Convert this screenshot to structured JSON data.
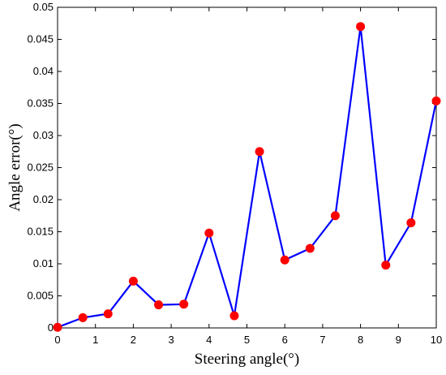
{
  "chart_data": {
    "type": "line",
    "xlabel": "Steering angle(°)",
    "ylabel": "Angle error(°)",
    "xlim": [
      0,
      10
    ],
    "ylim": [
      0,
      0.05
    ],
    "xticks": [
      "0",
      "1",
      "2",
      "3",
      "4",
      "5",
      "6",
      "7",
      "8",
      "9",
      "10"
    ],
    "yticks": [
      "0",
      "0.005",
      "0.01",
      "0.015",
      "0.02",
      "0.025",
      "0.03",
      "0.035",
      "0.04",
      "0.045",
      "0.05"
    ],
    "grid": false,
    "colors": {
      "line": "#0000ff",
      "marker": "#ff0000"
    },
    "series": [
      {
        "x": [
          0,
          0.667,
          1.333,
          2.0,
          2.667,
          3.333,
          4.0,
          4.667,
          5.333,
          6.0,
          6.667,
          7.333,
          8.0,
          8.667,
          9.333,
          10.0
        ],
        "y": [
          0.0001,
          0.0016,
          0.0022,
          0.0073,
          0.0036,
          0.0037,
          0.0148,
          0.0019,
          0.0275,
          0.0106,
          0.0124,
          0.0175,
          0.047,
          0.0098,
          0.0164,
          0.0354
        ]
      }
    ]
  }
}
